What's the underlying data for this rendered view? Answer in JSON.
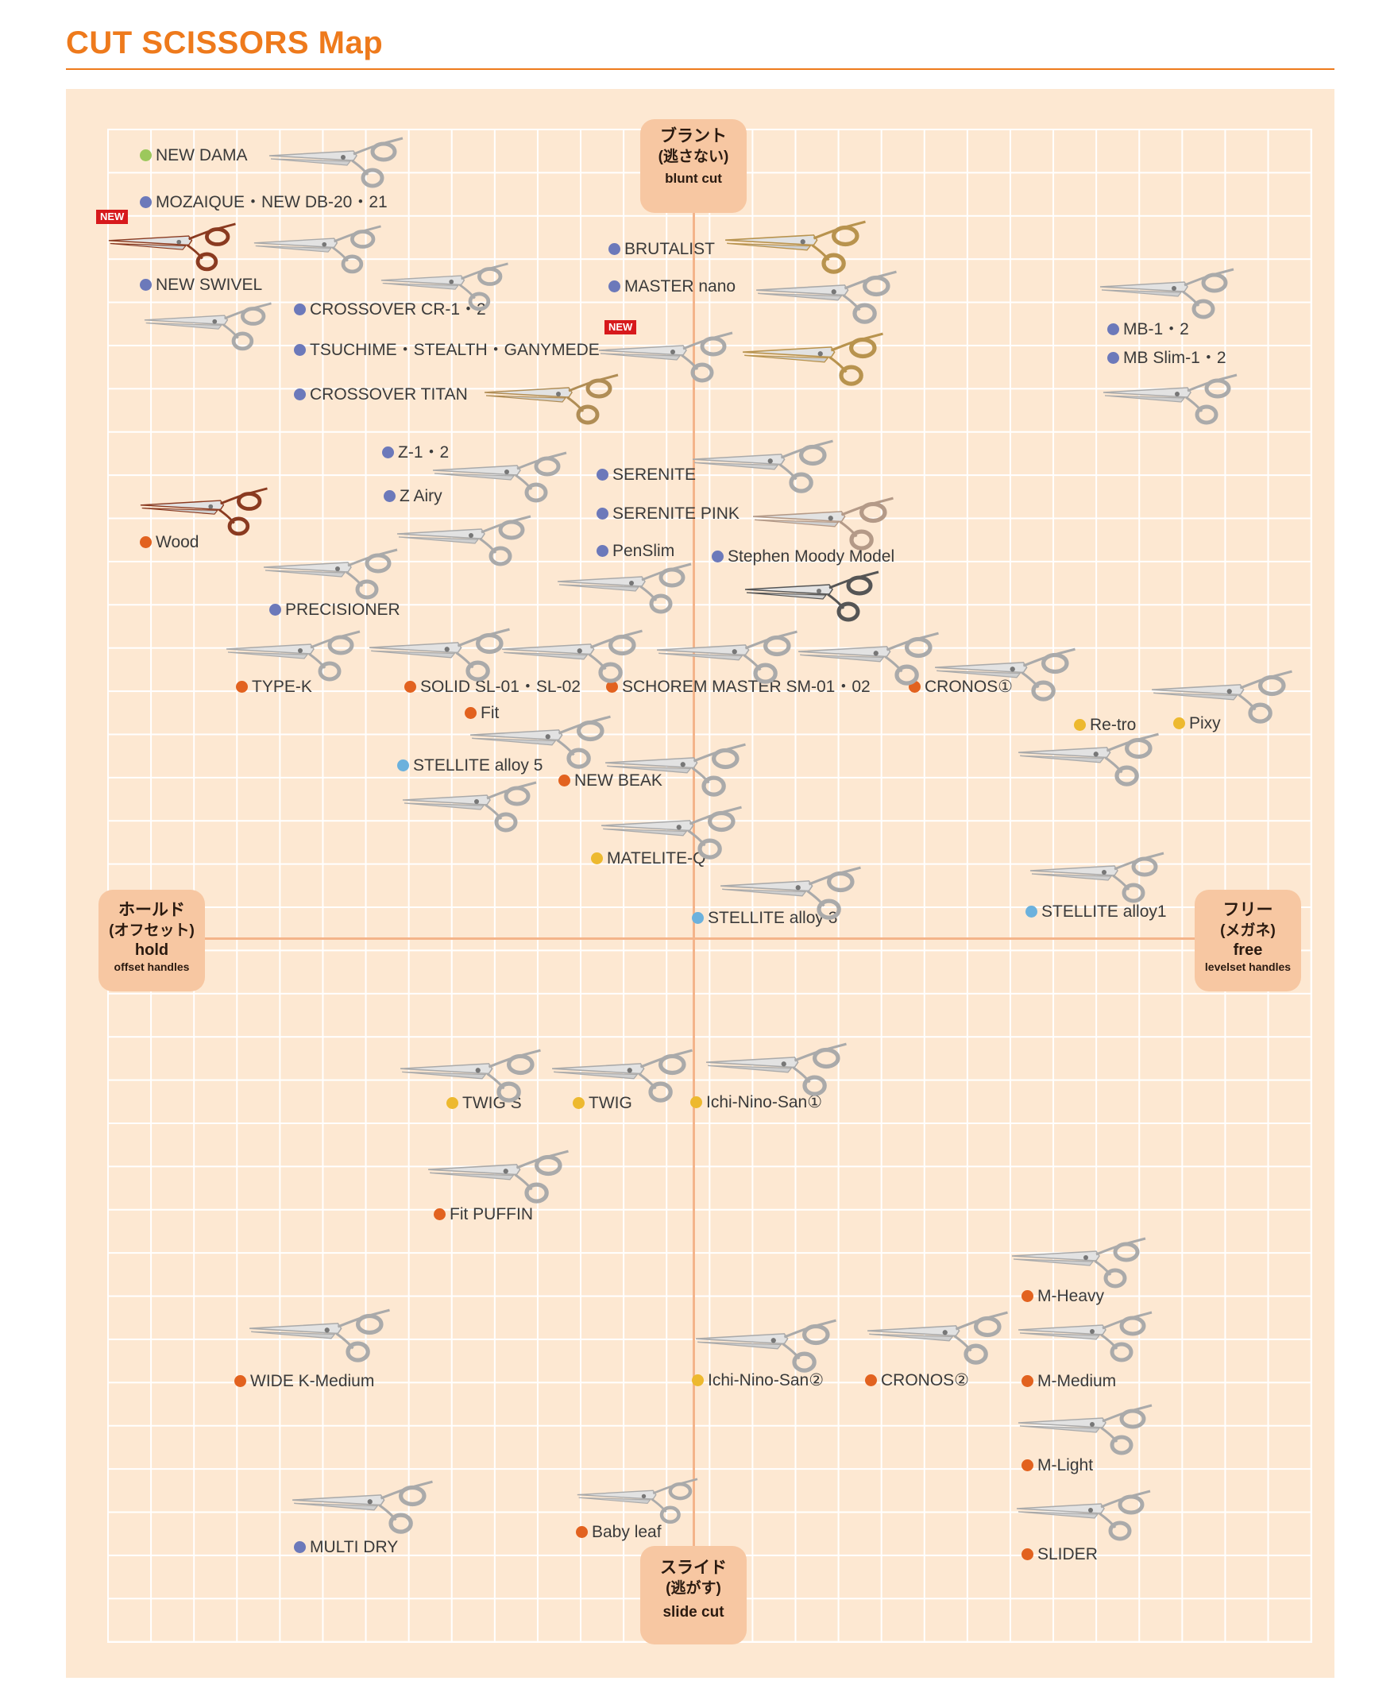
{
  "header": {
    "title": "CUT SCISSORS Map"
  },
  "axes": {
    "top": {
      "jp": "ブラント",
      "jp_sub": "(逃さない)",
      "en": "blunt cut",
      "sub": ""
    },
    "bottom": {
      "jp": "スライド",
      "jp_sub": "(逃がす)",
      "en": "slide cut",
      "sub": ""
    },
    "left": {
      "jp": "ホールド",
      "jp_sub": "(オフセット)",
      "en": "hold",
      "sub": "offset handles"
    },
    "right": {
      "jp": "フリー",
      "jp_sub": "(メガネ)",
      "en": "free",
      "sub": "levelset handles"
    }
  },
  "badges": {
    "new": "NEW"
  },
  "colors": {
    "orange": "#e2621f",
    "purple": "#6c79ba",
    "yellow": "#edb92f",
    "lightblue": "#6bb1dd",
    "green": "#9cc85c",
    "accent": "#ee7a1c",
    "background": "#fde8d2"
  },
  "items": [
    {
      "label": "NEW DAMA",
      "dot": "green"
    },
    {
      "label": "MOZAIQUE・NEW DB-20・21",
      "dot": "purple"
    },
    {
      "label": "NEW SWIVEL",
      "dot": "purple"
    },
    {
      "label": "CROSSOVER CR-1・2",
      "dot": "purple"
    },
    {
      "label": "TSUCHIME・STEALTH・GANYMEDE",
      "dot": "purple"
    },
    {
      "label": "CROSSOVER TITAN",
      "dot": "purple"
    },
    {
      "label": "BRUTALIST",
      "dot": "purple"
    },
    {
      "label": "MASTER nano",
      "dot": "purple"
    },
    {
      "label": "MB-1・2",
      "dot": "purple"
    },
    {
      "label": "MB Slim-1・2",
      "dot": "purple"
    },
    {
      "label": "Z-1・2",
      "dot": "purple"
    },
    {
      "label": "Z Airy",
      "dot": "purple"
    },
    {
      "label": "SERENITE",
      "dot": "purple"
    },
    {
      "label": "SERENITE PINK",
      "dot": "purple"
    },
    {
      "label": "PenSlim",
      "dot": "purple"
    },
    {
      "label": "Stephen Moody Model",
      "dot": "purple"
    },
    {
      "label": "Wood",
      "dot": "orange"
    },
    {
      "label": "PRECISIONER",
      "dot": "purple"
    },
    {
      "label": "TYPE-K",
      "dot": "orange"
    },
    {
      "label": "SOLID SL-01・SL-02",
      "dot": "orange"
    },
    {
      "label": "SCHOREM MASTER SM-01・02",
      "dot": "orange"
    },
    {
      "label": "CRONOS①",
      "dot": "orange"
    },
    {
      "label": "Fit",
      "dot": "orange"
    },
    {
      "label": "Re-tro",
      "dot": "yellow"
    },
    {
      "label": "Pixy",
      "dot": "yellow"
    },
    {
      "label": "STELLITE alloy 5",
      "dot": "lightblue"
    },
    {
      "label": "NEW BEAK",
      "dot": "orange"
    },
    {
      "label": "MATELITE-Q",
      "dot": "yellow"
    },
    {
      "label": "STELLITE alloy 3",
      "dot": "lightblue"
    },
    {
      "label": "STELLITE alloy1",
      "dot": "lightblue"
    },
    {
      "label": "TWIG S",
      "dot": "yellow"
    },
    {
      "label": "TWIG",
      "dot": "yellow"
    },
    {
      "label": "Ichi-Nino-San①",
      "dot": "yellow"
    },
    {
      "label": "Fit PUFFIN",
      "dot": "orange"
    },
    {
      "label": "M-Heavy",
      "dot": "orange"
    },
    {
      "label": "WIDE K-Medium",
      "dot": "orange"
    },
    {
      "label": "Ichi-Nino-San②",
      "dot": "yellow"
    },
    {
      "label": "CRONOS②",
      "dot": "orange"
    },
    {
      "label": "M-Medium",
      "dot": "orange"
    },
    {
      "label": "M-Light",
      "dot": "orange"
    },
    {
      "label": "MULTI DRY",
      "dot": "purple"
    },
    {
      "label": "Baby leaf",
      "dot": "orange"
    },
    {
      "label": "SLIDER",
      "dot": "orange"
    }
  ]
}
